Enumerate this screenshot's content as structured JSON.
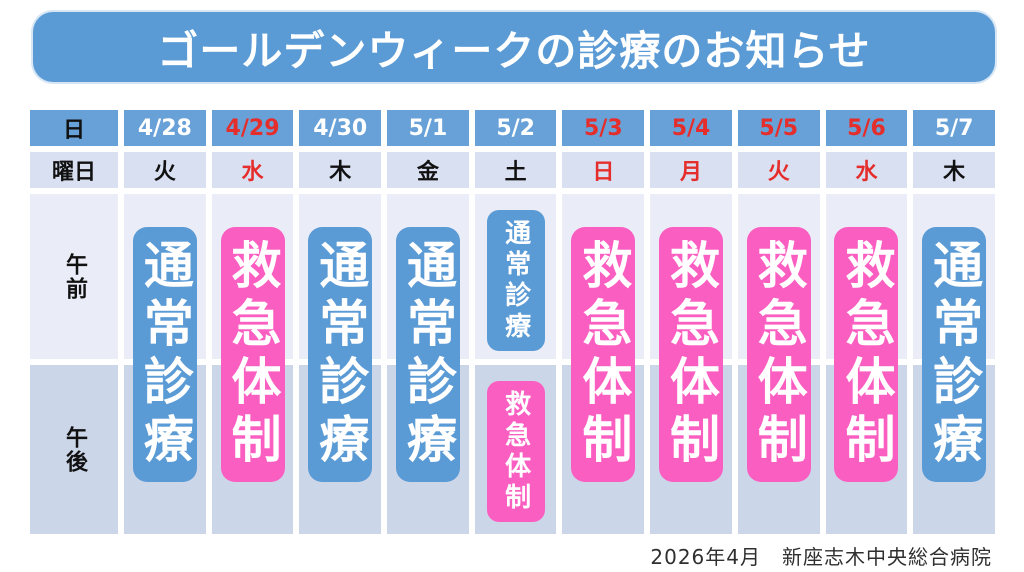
{
  "header": {
    "title": "ゴールデンウィークの診療のお知らせ"
  },
  "table": {
    "row_labels": {
      "date": "日",
      "weekday": "曜日",
      "morning": "午前",
      "afternoon": "午後"
    },
    "columns": [
      {
        "date": "4/28",
        "weekday": "火",
        "holiday": false,
        "pills": [
          {
            "label": "通常診療",
            "status": "normal",
            "period": "all-day"
          }
        ]
      },
      {
        "date": "4/29",
        "weekday": "水",
        "holiday": true,
        "pills": [
          {
            "label": "救急体制",
            "status": "emergency",
            "period": "all-day"
          }
        ]
      },
      {
        "date": "4/30",
        "weekday": "木",
        "holiday": false,
        "pills": [
          {
            "label": "通常診療",
            "status": "normal",
            "period": "all-day"
          }
        ]
      },
      {
        "date": "5/1",
        "weekday": "金",
        "holiday": false,
        "pills": [
          {
            "label": "通常診療",
            "status": "normal",
            "period": "all-day"
          }
        ]
      },
      {
        "date": "5/2",
        "weekday": "土",
        "holiday": false,
        "pills": [
          {
            "label": "通常診療",
            "status": "normal",
            "period": "morning"
          },
          {
            "label": "救急体制",
            "status": "emergency",
            "period": "afternoon"
          }
        ]
      },
      {
        "date": "5/3",
        "weekday": "日",
        "holiday": true,
        "pills": [
          {
            "label": "救急体制",
            "status": "emergency",
            "period": "all-day"
          }
        ]
      },
      {
        "date": "5/4",
        "weekday": "月",
        "holiday": true,
        "pills": [
          {
            "label": "救急体制",
            "status": "emergency",
            "period": "all-day"
          }
        ]
      },
      {
        "date": "5/5",
        "weekday": "火",
        "holiday": true,
        "pills": [
          {
            "label": "救急体制",
            "status": "emergency",
            "period": "all-day"
          }
        ]
      },
      {
        "date": "5/6",
        "weekday": "水",
        "holiday": true,
        "pills": [
          {
            "label": "救急体制",
            "status": "emergency",
            "period": "all-day"
          }
        ]
      },
      {
        "date": "5/7",
        "weekday": "木",
        "holiday": false,
        "pills": [
          {
            "label": "通常診療",
            "status": "normal",
            "period": "all-day"
          }
        ]
      }
    ]
  },
  "colors": {
    "banner_blue": "#5b9bd5",
    "date_row_blue": "#68a1d7",
    "normal_pill_blue": "#5b9bd5",
    "emergency_pill_pink": "#fb5ec1",
    "holiday_red": "#e52e2b",
    "weekday_row_bg": "#d9e0f2",
    "morning_row_bg": "#eaedf7",
    "afternoon_row_bg": "#ccd6e9"
  },
  "footer": {
    "text": "2026年4月　新座志木中央総合病院"
  }
}
